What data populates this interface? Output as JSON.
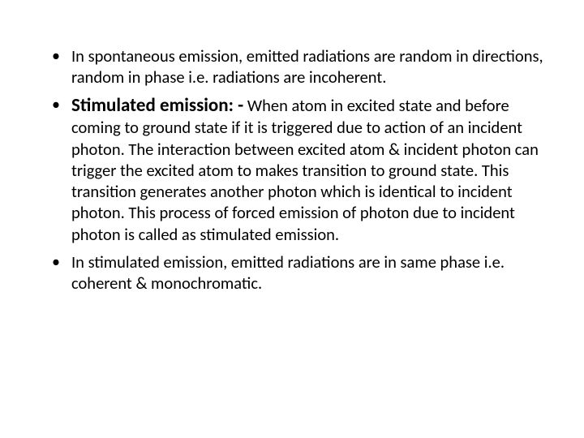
{
  "slide": {
    "bullets": [
      {
        "text": "In spontaneous emission, emitted radiations are random in directions, random in phase i.e. radiations are incoherent."
      },
      {
        "heading": "Stimulated emission: -",
        "text": " When atom in excited state and before coming to ground state if it is triggered due to action of an incident photon. The interaction between excited atom & incident photon can trigger the excited atom to makes transition to ground state. This transition generates another photon which is identical to incident photon. This process of forced emission of photon due to incident photon is called as stimulated emission."
      },
      {
        "text": "In stimulated emission, emitted radiations are in same phase i.e. coherent & monochromatic."
      }
    ]
  },
  "style": {
    "background_color": "#ffffff",
    "text_color": "#000000",
    "body_fontsize": 20.5,
    "heading_fontsize": 23,
    "font_family": "Calibri, Arial, sans-serif",
    "line_height": 1.28
  }
}
